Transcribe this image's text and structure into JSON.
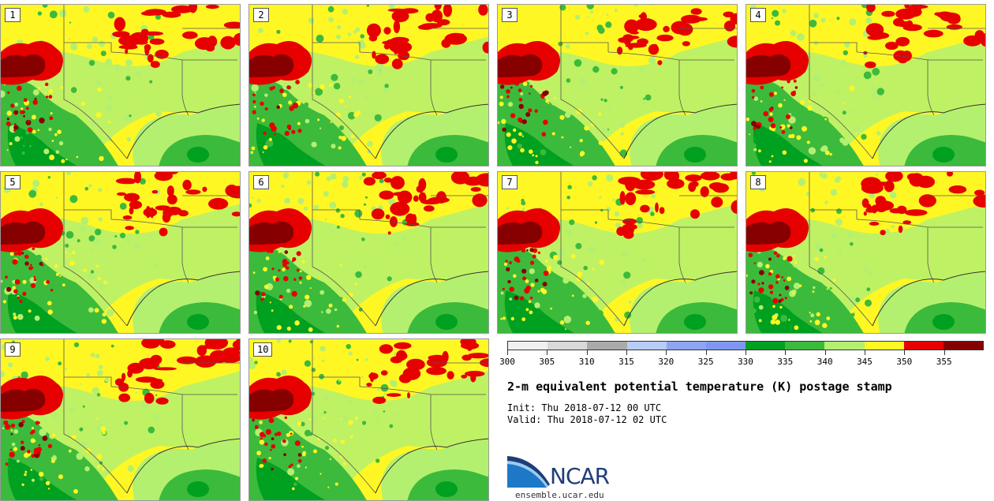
{
  "title": "2-m equivalent potential temperature (K) postage stamp",
  "init": "Init: Thu 2018-07-12 00 UTC",
  "valid": "Valid: Thu 2018-07-12 02 UTC",
  "logo": {
    "name": "NCAR",
    "url_text": "ensemble.ucar.edu"
  },
  "panels": [
    {
      "label": "1"
    },
    {
      "label": "2"
    },
    {
      "label": "3"
    },
    {
      "label": "4"
    },
    {
      "label": "5"
    },
    {
      "label": "6"
    },
    {
      "label": "7"
    },
    {
      "label": "8"
    },
    {
      "label": "9"
    },
    {
      "label": "10"
    }
  ],
  "colorbar": {
    "unit": "K",
    "min": 300,
    "max": 360,
    "tick_labels": [
      "300",
      "305",
      "310",
      "315",
      "320",
      "325",
      "330",
      "335",
      "340",
      "345",
      "350",
      "355"
    ],
    "colors": [
      "#f0f0f0",
      "#d9d9d9",
      "#aaaaaa",
      "#b7ccf6",
      "#8ea6f2",
      "#7f97f0",
      "#00a020",
      "#3cba3c",
      "#b4f070",
      "#fff724",
      "#e60000",
      "#860000"
    ]
  },
  "map_colors": {
    "ocean": "#b4f070",
    "gulf_deep": "#3cba3c",
    "land_yellow": "#fff724",
    "land_green": "#3cba3c",
    "land_dark_green": "#00a020",
    "red": "#e60000",
    "dark_red": "#860000",
    "border": "#555555"
  }
}
